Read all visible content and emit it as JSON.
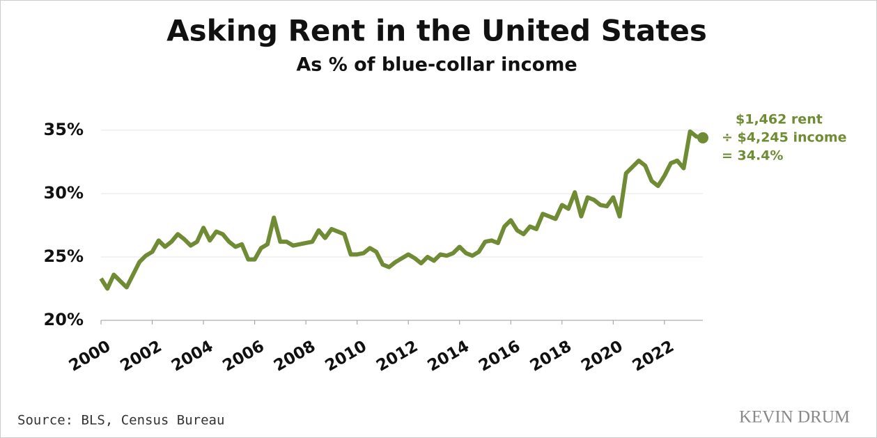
{
  "chart_data": {
    "type": "line",
    "title": "Asking Rent in the United States",
    "subtitle": "As % of blue-collar income",
    "source": "Source: BLS, Census Bureau",
    "brand": "KEVIN DRUM",
    "annotation": [
      "$1,462 rent",
      "÷ $4,245 income",
      "= 34.4%"
    ],
    "x": [
      2000,
      2000.25,
      2000.5,
      2000.75,
      2001,
      2001.25,
      2001.5,
      2001.75,
      2002,
      2002.25,
      2002.5,
      2002.75,
      2003,
      2003.25,
      2003.5,
      2003.75,
      2004,
      2004.25,
      2004.5,
      2004.75,
      2005,
      2005.25,
      2005.5,
      2005.75,
      2006,
      2006.25,
      2006.5,
      2006.75,
      2007,
      2007.25,
      2007.5,
      2007.75,
      2008,
      2008.25,
      2008.5,
      2008.75,
      2009,
      2009.25,
      2009.5,
      2009.75,
      2010,
      2010.25,
      2010.5,
      2010.75,
      2011,
      2011.25,
      2011.5,
      2011.75,
      2012,
      2012.25,
      2012.5,
      2012.75,
      2013,
      2013.25,
      2013.5,
      2013.75,
      2014,
      2014.25,
      2014.5,
      2014.75,
      2015,
      2015.25,
      2015.5,
      2015.75,
      2016,
      2016.25,
      2016.5,
      2016.75,
      2017,
      2017.25,
      2017.5,
      2017.75,
      2018,
      2018.25,
      2018.5,
      2018.75,
      2019,
      2019.25,
      2019.5,
      2019.75,
      2020,
      2020.25,
      2020.5,
      2020.75,
      2021,
      2021.25,
      2021.5,
      2021.75,
      2022,
      2022.25,
      2022.5,
      2022.75,
      2023,
      2023.25,
      2023.5
    ],
    "series": [
      {
        "name": "Asking rent as % of blue-collar income",
        "color": "#6f8c35",
        "values": [
          23.3,
          22.5,
          23.6,
          23.1,
          22.6,
          23.6,
          24.6,
          25.1,
          25.4,
          26.3,
          25.8,
          26.2,
          26.8,
          26.4,
          25.9,
          26.2,
          27.3,
          26.3,
          27.0,
          26.8,
          26.2,
          25.8,
          26.0,
          24.8,
          24.8,
          25.7,
          26.0,
          28.1,
          26.2,
          26.2,
          25.9,
          26.0,
          26.1,
          26.2,
          27.1,
          26.5,
          27.2,
          27.0,
          26.8,
          25.2,
          25.2,
          25.3,
          25.7,
          25.4,
          24.4,
          24.2,
          24.6,
          24.9,
          25.2,
          24.9,
          24.5,
          25.0,
          24.7,
          25.2,
          25.1,
          25.3,
          25.8,
          25.3,
          25.1,
          25.4,
          26.2,
          26.3,
          26.1,
          27.4,
          27.9,
          27.1,
          26.8,
          27.4,
          27.2,
          28.4,
          28.2,
          28.0,
          29.1,
          28.8,
          30.1,
          28.2,
          29.7,
          29.5,
          29.1,
          29.0,
          29.7,
          28.2,
          31.6,
          32.1,
          32.6,
          32.2,
          31.0,
          30.6,
          31.4,
          32.4,
          32.6,
          32.0,
          34.9,
          34.5,
          34.4
        ]
      }
    ],
    "xlim": [
      2000,
      2023.5
    ],
    "xticks": [
      2000,
      2002,
      2004,
      2006,
      2008,
      2010,
      2012,
      2014,
      2016,
      2018,
      2020,
      2022
    ],
    "ylim": [
      20,
      35
    ],
    "yticks": [
      {
        "value": 20,
        "label": "20%"
      },
      {
        "value": 25,
        "label": "25%"
      },
      {
        "value": 30,
        "label": "30%"
      },
      {
        "value": 35,
        "label": "35%"
      }
    ],
    "grid": true
  }
}
